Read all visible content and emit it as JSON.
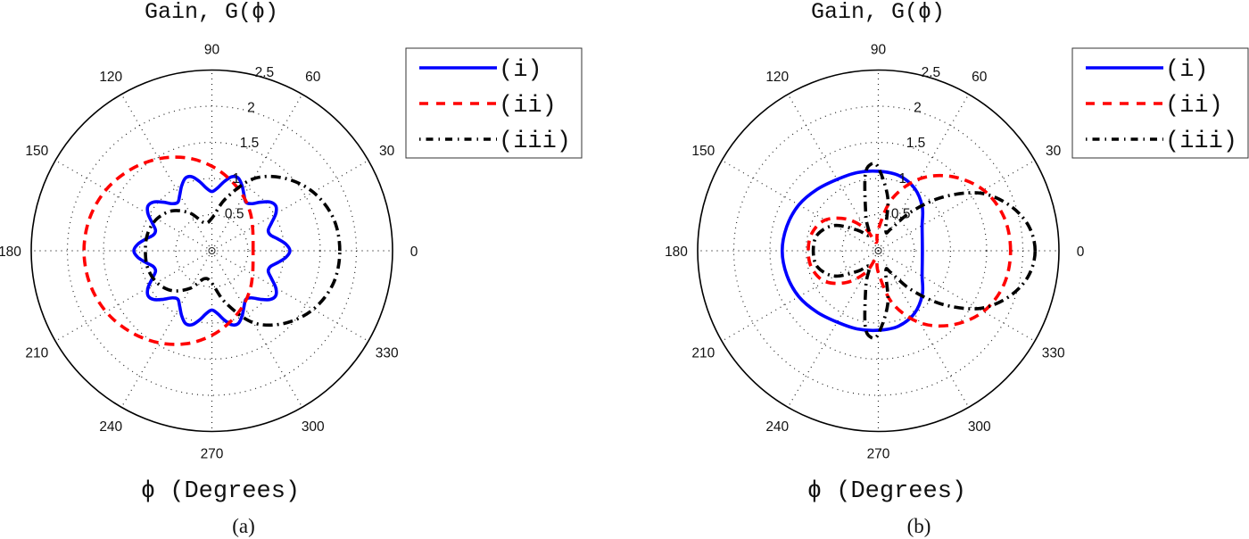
{
  "figure": {
    "panels": [
      "(a)",
      "(b)"
    ]
  },
  "chart_data": [
    {
      "type": "line",
      "subtype": "polar",
      "panel_label": "(a)",
      "title": "Gain, G(ϕ)",
      "xlabel": "ϕ (Degrees)",
      "ylabel": "",
      "rlim": [
        0,
        2.5
      ],
      "r_ticks": [
        "0.5",
        "1",
        "1.5",
        "2",
        "2.5"
      ],
      "angle_ticks": [
        "0",
        "30",
        "60",
        "90",
        "120",
        "150",
        "180",
        "210",
        "240",
        "270",
        "300",
        "330"
      ],
      "grid": true,
      "legend_position": "upper right (outside)",
      "series": [
        {
          "name": "(i)",
          "color": "#0000ff",
          "style": "solid",
          "points": [
            [
              0,
              1.08
            ],
            [
              5,
              1.03
            ],
            [
              10,
              0.93
            ],
            [
              15,
              0.84
            ],
            [
              20,
              0.83
            ],
            [
              25,
              0.91
            ],
            [
              30,
              1.02
            ],
            [
              35,
              1.08
            ],
            [
              40,
              1.05
            ],
            [
              45,
              0.95
            ],
            [
              50,
              0.85
            ],
            [
              55,
              0.82
            ],
            [
              60,
              0.89
            ],
            [
              65,
              0.99
            ],
            [
              70,
              1.07
            ],
            [
              75,
              1.06
            ],
            [
              80,
              0.97
            ],
            [
              85,
              0.87
            ],
            [
              90,
              0.82
            ],
            [
              95,
              0.87
            ],
            [
              100,
              0.97
            ],
            [
              105,
              1.06
            ],
            [
              110,
              1.07
            ],
            [
              115,
              0.99
            ],
            [
              120,
              0.89
            ],
            [
              125,
              0.82
            ],
            [
              130,
              0.85
            ],
            [
              135,
              0.95
            ],
            [
              140,
              1.05
            ],
            [
              145,
              1.08
            ],
            [
              150,
              1.02
            ],
            [
              155,
              0.91
            ],
            [
              160,
              0.83
            ],
            [
              165,
              0.84
            ],
            [
              170,
              0.93
            ],
            [
              175,
              1.03
            ],
            [
              180,
              1.08
            ],
            [
              185,
              1.03
            ],
            [
              190,
              0.93
            ],
            [
              195,
              0.84
            ],
            [
              200,
              0.83
            ],
            [
              205,
              0.91
            ],
            [
              210,
              1.02
            ],
            [
              215,
              1.08
            ],
            [
              220,
              1.05
            ],
            [
              225,
              0.95
            ],
            [
              230,
              0.85
            ],
            [
              235,
              0.82
            ],
            [
              240,
              0.89
            ],
            [
              245,
              0.99
            ],
            [
              250,
              1.07
            ],
            [
              255,
              1.06
            ],
            [
              260,
              0.97
            ],
            [
              265,
              0.87
            ],
            [
              270,
              0.82
            ],
            [
              275,
              0.87
            ],
            [
              280,
              0.97
            ],
            [
              285,
              1.06
            ],
            [
              290,
              1.07
            ],
            [
              295,
              0.99
            ],
            [
              300,
              0.89
            ],
            [
              305,
              0.82
            ],
            [
              310,
              0.85
            ],
            [
              315,
              0.95
            ],
            [
              320,
              1.05
            ],
            [
              325,
              1.08
            ],
            [
              330,
              1.02
            ],
            [
              335,
              0.91
            ],
            [
              340,
              0.83
            ],
            [
              345,
              0.84
            ],
            [
              350,
              0.93
            ],
            [
              355,
              1.03
            ]
          ]
        },
        {
          "name": "(ii)",
          "color": "#ff0000",
          "style": "dashed",
          "points": [
            [
              0,
              0.57
            ],
            [
              15,
              0.59
            ],
            [
              30,
              0.65
            ],
            [
              45,
              0.75
            ],
            [
              60,
              0.87
            ],
            [
              75,
              1.01
            ],
            [
              90,
              1.17
            ],
            [
              105,
              1.33
            ],
            [
              120,
              1.47
            ],
            [
              135,
              1.59
            ],
            [
              150,
              1.69
            ],
            [
              165,
              1.75
            ],
            [
              180,
              1.77
            ],
            [
              195,
              1.75
            ],
            [
              210,
              1.69
            ],
            [
              225,
              1.59
            ],
            [
              240,
              1.47
            ],
            [
              255,
              1.33
            ],
            [
              270,
              1.17
            ],
            [
              285,
              1.01
            ],
            [
              300,
              0.87
            ],
            [
              315,
              0.75
            ],
            [
              330,
              0.65
            ],
            [
              345,
              0.59
            ]
          ]
        },
        {
          "name": "(iii)",
          "color": "#000000",
          "style": "dashdot",
          "points": [
            [
              0,
              1.77
            ],
            [
              15,
              1.74
            ],
            [
              30,
              1.62
            ],
            [
              45,
              1.42
            ],
            [
              60,
              1.15
            ],
            [
              75,
              0.75
            ],
            [
              90,
              0.45
            ],
            [
              105,
              0.4
            ],
            [
              120,
              0.6
            ],
            [
              135,
              0.78
            ],
            [
              150,
              0.88
            ],
            [
              165,
              0.92
            ],
            [
              180,
              0.92
            ],
            [
              195,
              0.92
            ],
            [
              210,
              0.88
            ],
            [
              225,
              0.78
            ],
            [
              240,
              0.6
            ],
            [
              255,
              0.4
            ],
            [
              270,
              0.45
            ],
            [
              285,
              0.75
            ],
            [
              300,
              1.15
            ],
            [
              315,
              1.42
            ],
            [
              330,
              1.62
            ],
            [
              345,
              1.74
            ]
          ]
        }
      ]
    },
    {
      "type": "line",
      "subtype": "polar",
      "panel_label": "(b)",
      "title": "Gain, G(ϕ)",
      "xlabel": "ϕ (Degrees)",
      "ylabel": "",
      "rlim": [
        0,
        2.5
      ],
      "r_ticks": [
        "0.5",
        "1",
        "1.5",
        "2",
        "2.5"
      ],
      "angle_ticks": [
        "0",
        "30",
        "60",
        "90",
        "120",
        "150",
        "180",
        "210",
        "240",
        "270",
        "300",
        "330"
      ],
      "grid": true,
      "legend_position": "upper right (outside)",
      "series": [
        {
          "name": "(i)",
          "color": "#0000ff",
          "style": "solid",
          "points": [
            [
              0,
              0.61
            ],
            [
              15,
              0.63
            ],
            [
              30,
              0.7
            ],
            [
              45,
              0.86
            ],
            [
              60,
              1.0
            ],
            [
              75,
              1.08
            ],
            [
              90,
              1.1
            ],
            [
              105,
              1.12
            ],
            [
              120,
              1.14
            ],
            [
              135,
              1.2
            ],
            [
              150,
              1.27
            ],
            [
              165,
              1.31
            ],
            [
              180,
              1.33
            ],
            [
              195,
              1.31
            ],
            [
              210,
              1.27
            ],
            [
              225,
              1.2
            ],
            [
              240,
              1.14
            ],
            [
              255,
              1.12
            ],
            [
              270,
              1.1
            ],
            [
              285,
              1.08
            ],
            [
              300,
              1.0
            ],
            [
              315,
              0.86
            ],
            [
              330,
              0.7
            ],
            [
              345,
              0.63
            ]
          ]
        },
        {
          "name": "(ii)",
          "color": "#ff0000",
          "style": "dashed",
          "points": [
            [
              0,
              1.83
            ],
            [
              15,
              1.8
            ],
            [
              30,
              1.68
            ],
            [
              45,
              1.45
            ],
            [
              60,
              1.15
            ],
            [
              75,
              0.75
            ],
            [
              90,
              0.3
            ],
            [
              105,
              0.12
            ],
            [
              120,
              0.35
            ],
            [
              135,
              0.62
            ],
            [
              150,
              0.85
            ],
            [
              165,
              0.95
            ],
            [
              180,
              0.97
            ],
            [
              195,
              0.95
            ],
            [
              210,
              0.85
            ],
            [
              225,
              0.62
            ],
            [
              240,
              0.35
            ],
            [
              255,
              0.12
            ],
            [
              270,
              0.3
            ],
            [
              285,
              0.75
            ],
            [
              300,
              1.15
            ],
            [
              315,
              1.45
            ],
            [
              330,
              1.68
            ],
            [
              345,
              1.8
            ]
          ]
        },
        {
          "name": "(iii)",
          "color": "#000000",
          "style": "dashdot",
          "points": [
            [
              0,
              2.17
            ],
            [
              10,
              2.1
            ],
            [
              20,
              1.9
            ],
            [
              30,
              1.6
            ],
            [
              40,
              1.15
            ],
            [
              50,
              0.7
            ],
            [
              60,
              0.35
            ],
            [
              70,
              0.3
            ],
            [
              80,
              0.75
            ],
            [
              90,
              1.15
            ],
            [
              95,
              1.2
            ],
            [
              100,
              1.05
            ],
            [
              110,
              0.5
            ],
            [
              120,
              0.25
            ],
            [
              135,
              0.4
            ],
            [
              150,
              0.7
            ],
            [
              165,
              0.87
            ],
            [
              180,
              0.9
            ],
            [
              195,
              0.87
            ],
            [
              210,
              0.7
            ],
            [
              225,
              0.4
            ],
            [
              240,
              0.25
            ],
            [
              250,
              0.5
            ],
            [
              260,
              1.05
            ],
            [
              265,
              1.2
            ],
            [
              270,
              1.15
            ],
            [
              280,
              0.75
            ],
            [
              290,
              0.3
            ],
            [
              300,
              0.35
            ],
            [
              310,
              0.7
            ],
            [
              320,
              1.15
            ],
            [
              330,
              1.6
            ],
            [
              340,
              1.9
            ],
            [
              350,
              2.1
            ]
          ]
        }
      ]
    }
  ]
}
